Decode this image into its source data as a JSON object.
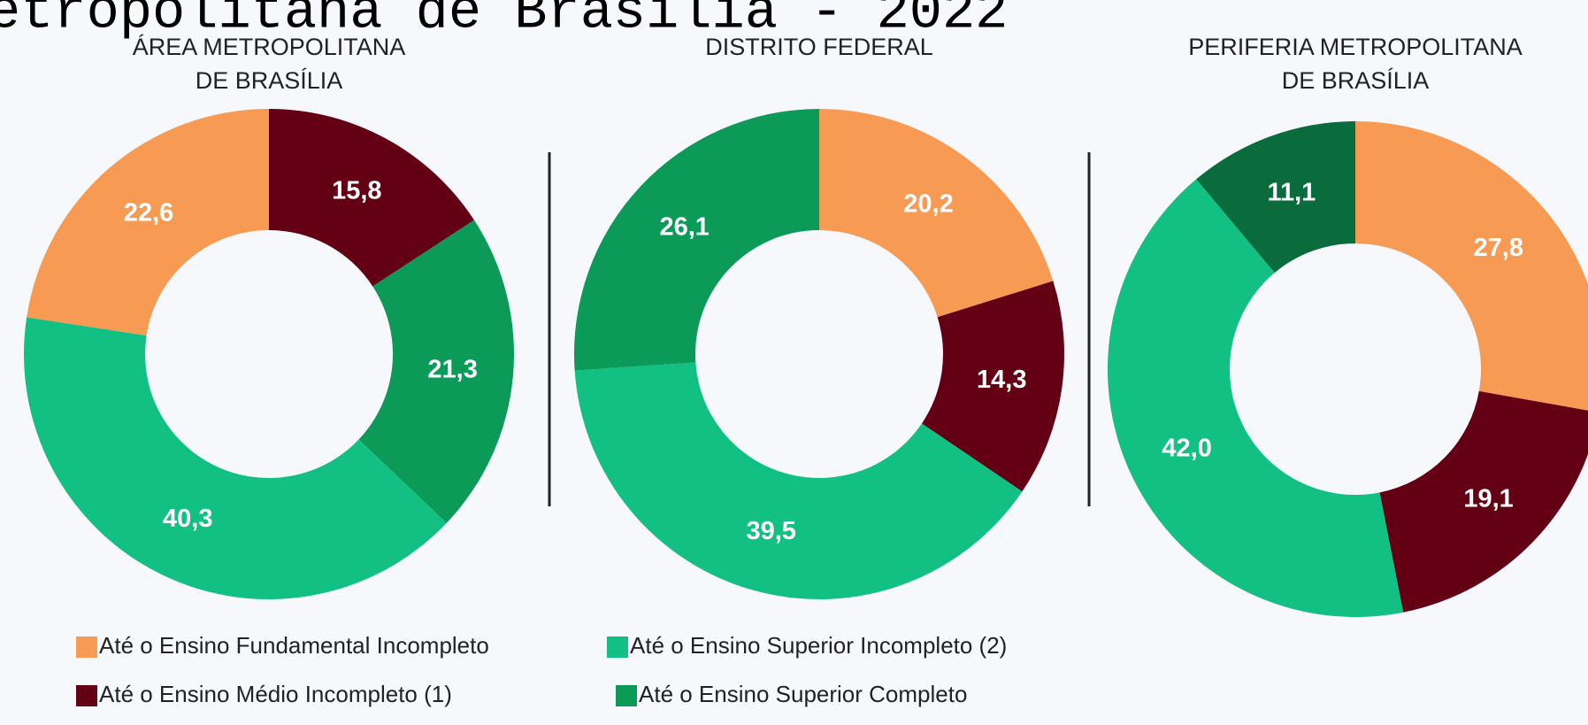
{
  "title": "etropolitana de Brasília - 2022",
  "chart_data": [
    {
      "type": "pie",
      "title": [
        "ÁREA METROPOLITANA",
        "DE BRASÍLIA"
      ],
      "categories": [
        "Até o Ensino Médio Incompleto (1)",
        "Até o Ensino Superior Completo",
        "Até o Ensino Superior Incompleto (2)",
        "Até o Ensino Fundamental Incompleto"
      ],
      "values": [
        15.8,
        21.3,
        40.3,
        22.6
      ],
      "value_labels": [
        "15,8",
        "21,3",
        "40,3",
        "22,6"
      ],
      "colors": [
        "#640013",
        "#0b9a58",
        "#13c083",
        "#f79a54"
      ]
    },
    {
      "type": "pie",
      "title": [
        "DISTRITO FEDERAL"
      ],
      "categories": [
        "Até o Ensino Fundamental Incompleto",
        "Até o Ensino Médio Incompleto (1)",
        "Até o Ensino Superior Incompleto (2)",
        "Até o Ensino Superior Completo"
      ],
      "values": [
        20.2,
        14.3,
        39.5,
        26.1
      ],
      "value_labels": [
        "20,2",
        "14,3",
        "39,5",
        "26,1"
      ],
      "colors": [
        "#f79a54",
        "#640013",
        "#13c083",
        "#0b9a58"
      ]
    },
    {
      "type": "pie",
      "title": [
        "PERIFERIA METROPOLITANA",
        "DE BRASÍLIA"
      ],
      "categories": [
        "Até o Ensino Fundamental Incompleto",
        "Até o Ensino Médio Incompleto (1)",
        "Até o Ensino Superior Incompleto (2)",
        "Até o Ensino Superior Completo"
      ],
      "values": [
        27.8,
        19.1,
        42,
        11.1
      ],
      "value_labels": [
        "27,8",
        "19,1",
        "42,0",
        "11,1"
      ],
      "colors": [
        "#f79a54",
        "#640013",
        "#13c083",
        "#0a6b3c"
      ]
    }
  ]
}
